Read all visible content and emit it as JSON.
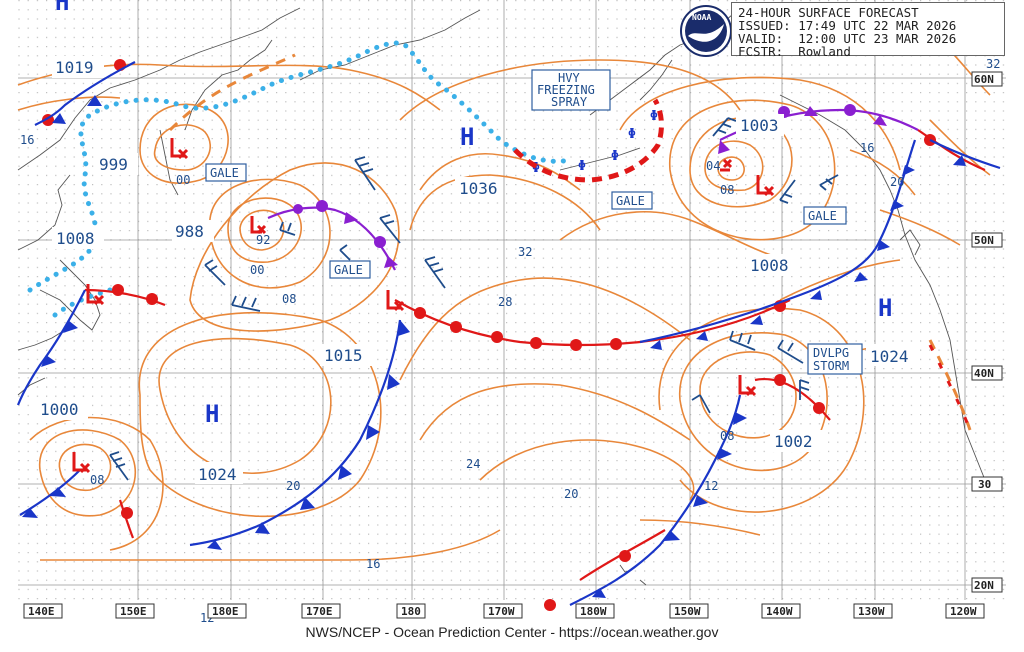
{
  "header": {
    "title": "24-HOUR SURFACE FORECAST",
    "issued_label": "ISSUED:",
    "issued_value": "17:49 UTC 22 MAR 2026",
    "valid_label": "VALID:",
    "valid_value": "12:00 UTC 23 MAR 2026",
    "forecaster_label": "FCSTR:",
    "forecaster_value": "Rowland",
    "logo_text": "NOAA"
  },
  "footer": {
    "credit": "NWS/NCEP - Ocean Prediction Center - https://ocean.weather.gov"
  },
  "colors": {
    "isobar": "#e8873a",
    "high": "#1a36c8",
    "low": "#e01818",
    "cold_front": "#1a36c8",
    "warm_front": "#e01818",
    "occluded": "#8a1fd0",
    "freezing_spray": "#3bb0e8",
    "label_box_border": "#2f5fa0",
    "label_text": "#1f4d8c"
  },
  "map": {
    "lon_labels": [
      "140E",
      "150E",
      "180E",
      "170E",
      "180",
      "170W",
      "180W",
      "150W",
      "140W",
      "130W",
      "120W"
    ],
    "lat_labels": [
      "60N",
      "50N",
      "40N",
      "30",
      "20N"
    ],
    "highs": [
      {
        "symbol": "H",
        "pressure": "1036"
      },
      {
        "symbol": "H",
        "pressure": "1024"
      },
      {
        "symbol": "H",
        "pressure": "1024"
      },
      {
        "symbol": "H",
        "pressure": ""
      }
    ],
    "lows": [
      {
        "pressure": "1003"
      },
      {
        "pressure": "988"
      },
      {
        "pressure": "999"
      },
      {
        "pressure": "1000"
      },
      {
        "pressure": "1002"
      },
      {
        "pressure": "1008"
      },
      {
        "pressure": "1015"
      },
      {
        "pressure": "1008"
      },
      {
        "pressure": "1019"
      }
    ],
    "warnings": [
      "GALE",
      "GALE",
      "GALE",
      "GALE",
      "HVY",
      "FREEZING",
      "SPRAY",
      "DVLPG",
      "STORM"
    ],
    "isobar_labels": [
      "32",
      "28",
      "24",
      "20",
      "20",
      "16",
      "16",
      "12",
      "12",
      "08",
      "08",
      "08",
      "08",
      "00",
      "00",
      "92",
      "04",
      "20",
      "16",
      "32"
    ]
  }
}
